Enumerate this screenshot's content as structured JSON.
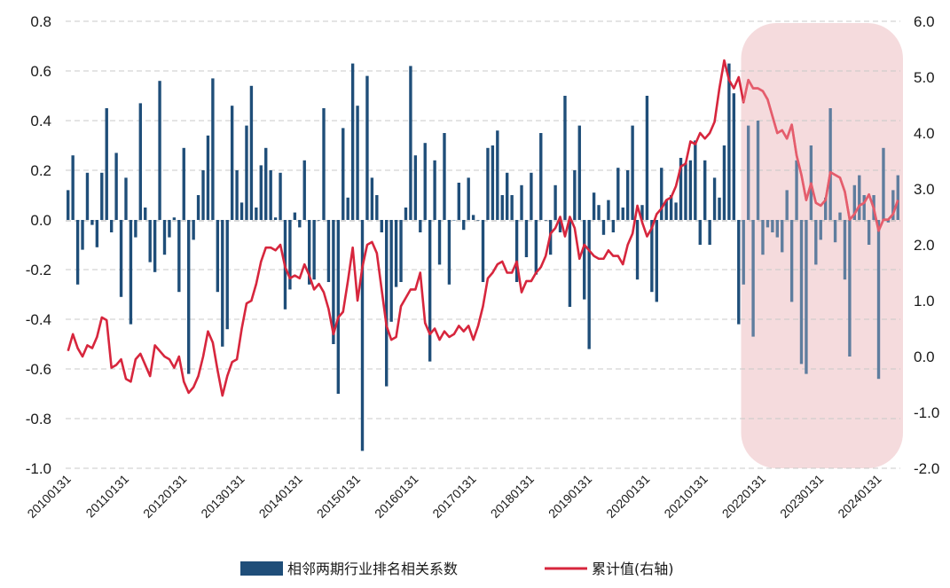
{
  "chart_data": {
    "type": "bar+line",
    "title": "",
    "left_axis": {
      "ylim": [
        -1.0,
        0.8
      ],
      "ticks": [
        "0.8",
        "0.6",
        "0.4",
        "0.2",
        "0.0",
        "-0.2",
        "-0.4",
        "-0.6",
        "-0.8",
        "-1.0"
      ]
    },
    "right_axis": {
      "ylim": [
        -2.0,
        6.0
      ],
      "ticks": [
        "6.0",
        "5.0",
        "4.0",
        "3.0",
        "2.0",
        "1.0",
        "0.0",
        "-1.0",
        "-2.0"
      ]
    },
    "x_tick_labels": [
      "20100131",
      "20110131",
      "20120131",
      "20130131",
      "20140131",
      "20150131",
      "20160131",
      "20170131",
      "20180131",
      "20190131",
      "20200131",
      "20210131",
      "20220131",
      "20230131",
      "20240131"
    ],
    "start_period": "20100131",
    "frequency": "monthly",
    "highlight": {
      "from_index": 140,
      "to_index": 174,
      "color": "#f2d2d4"
    },
    "series": [
      {
        "name": "相邻两期行业排名相关系数",
        "type": "bar",
        "axis": "left",
        "color": "#1f4e79",
        "values": [
          0.12,
          0.26,
          -0.26,
          -0.12,
          0.19,
          -0.02,
          -0.11,
          0.19,
          0.45,
          -0.05,
          0.27,
          -0.31,
          0.17,
          -0.42,
          -0.07,
          0.47,
          0.05,
          -0.17,
          -0.21,
          0.56,
          -0.14,
          -0.07,
          0.01,
          -0.29,
          0.29,
          -0.62,
          -0.08,
          0.1,
          0.2,
          0.34,
          0.57,
          -0.29,
          -0.51,
          -0.44,
          0.46,
          0.2,
          0.07,
          0.38,
          0.54,
          0.05,
          0.22,
          0.29,
          0.2,
          0.01,
          0.19,
          -0.36,
          -0.28,
          0.03,
          -0.03,
          0.24,
          -0.26,
          -0.24,
          0.0,
          0.45,
          -0.25,
          -0.5,
          -0.7,
          0.37,
          0.09,
          0.63,
          0.46,
          -0.93,
          0.58,
          0.17,
          0.1,
          -0.05,
          -0.67,
          -0.41,
          -0.27,
          -0.25,
          0.05,
          0.62,
          0.26,
          -0.05,
          0.31,
          -0.57,
          0.24,
          -0.18,
          0.35,
          -0.26,
          0.0,
          0.15,
          -0.04,
          0.17,
          0.02,
          0.0,
          -0.25,
          0.29,
          0.3,
          0.36,
          0.1,
          0.19,
          0.1,
          -0.25,
          0.14,
          -0.15,
          0.19,
          -0.22,
          0.35,
          0.0,
          -0.14,
          0.14,
          -0.05,
          0.5,
          -0.35,
          0.2,
          0.38,
          -0.32,
          -0.52,
          0.11,
          0.06,
          -0.06,
          0.08,
          -0.05,
          0.21,
          0.05,
          0.2,
          0.38,
          -0.24,
          0.06,
          0.5,
          -0.29,
          -0.33,
          0.21,
          0.08,
          0.1,
          0.07,
          0.25,
          0.23,
          0.24,
          0.32,
          -0.1,
          0.24,
          -0.1,
          0.17,
          0.09,
          0.3,
          0.63,
          0.51,
          -0.42,
          -0.26,
          0.38,
          -0.47,
          0.4,
          -0.14,
          -0.03,
          -0.05,
          -0.07,
          -0.13,
          0.12,
          -0.33,
          0.24,
          -0.58,
          -0.62,
          0.3,
          -0.18,
          -0.08,
          0.09,
          0.45,
          -0.09,
          0.03,
          -0.24,
          -0.55,
          0.14,
          0.18,
          0.1,
          -0.1,
          0.1,
          -0.64,
          0.29,
          -0.01,
          0.12,
          0.18
        ]
      },
      {
        "name": "累计值(右轴)",
        "type": "line",
        "axis": "right",
        "color": "#d7263d",
        "values": [
          0.1,
          0.4,
          0.15,
          0.0,
          0.2,
          0.15,
          0.35,
          0.7,
          0.65,
          -0.2,
          -0.15,
          -0.05,
          -0.4,
          -0.45,
          -0.05,
          0.05,
          -0.15,
          -0.35,
          0.2,
          0.1,
          0.0,
          -0.05,
          -0.2,
          0.0,
          -0.45,
          -0.65,
          -0.55,
          -0.35,
          0.0,
          0.45,
          0.25,
          -0.25,
          -0.7,
          -0.35,
          -0.1,
          -0.05,
          0.5,
          0.95,
          1.0,
          1.3,
          1.7,
          1.95,
          1.95,
          1.9,
          2.0,
          1.6,
          1.4,
          1.45,
          1.4,
          1.65,
          1.45,
          1.2,
          1.3,
          1.15,
          0.85,
          0.4,
          0.7,
          0.8,
          1.35,
          1.95,
          1.0,
          1.6,
          2.0,
          2.05,
          1.85,
          1.2,
          0.55,
          0.3,
          0.35,
          0.9,
          1.05,
          1.2,
          1.2,
          1.5,
          0.6,
          0.4,
          0.5,
          0.3,
          0.45,
          0.35,
          0.4,
          0.55,
          0.45,
          0.55,
          0.3,
          0.55,
          0.9,
          1.4,
          1.5,
          1.65,
          1.7,
          1.5,
          1.5,
          1.7,
          1.15,
          1.35,
          1.35,
          1.5,
          1.6,
          1.8,
          2.2,
          2.3,
          2.5,
          2.15,
          2.5,
          2.3,
          1.75,
          2.0,
          1.9,
          1.8,
          1.75,
          1.75,
          1.9,
          1.8,
          1.8,
          1.65,
          2.0,
          2.2,
          2.7,
          2.4,
          2.15,
          2.3,
          2.55,
          2.65,
          2.8,
          2.85,
          3.05,
          3.4,
          3.45,
          3.85,
          3.8,
          4.0,
          3.9,
          4.0,
          4.2,
          4.8,
          5.3,
          4.95,
          4.8,
          5.0,
          4.55,
          4.95,
          4.8,
          4.8,
          4.75,
          4.6,
          4.3,
          4.0,
          4.05,
          3.9,
          4.15,
          3.6,
          3.25,
          2.8,
          3.1,
          2.75,
          2.7,
          2.8,
          3.3,
          3.25,
          3.2,
          2.95,
          2.45,
          2.55,
          2.7,
          2.75,
          2.9,
          2.65,
          2.25,
          2.45,
          2.45,
          2.55,
          2.8
        ]
      }
    ],
    "legend": {
      "position": "bottom-center"
    }
  }
}
